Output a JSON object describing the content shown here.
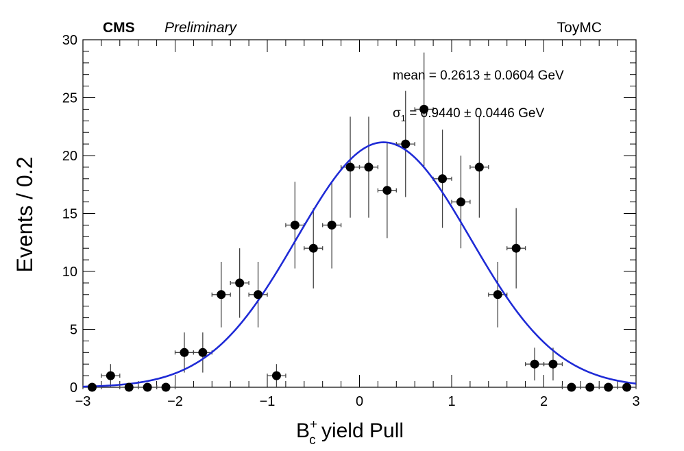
{
  "chart_data": {
    "type": "scatter",
    "header_left": "CMS",
    "header_italic": "Preliminary",
    "header_right": "ToyMC",
    "xlabel": {
      "main": "B",
      "sub": "c",
      "sup": "+",
      "rest": " yield Pull"
    },
    "ylabel": "Events / 0.2",
    "xlim": [
      -3,
      3
    ],
    "ylim": [
      0,
      30
    ],
    "x_ticks": [
      -3,
      -2,
      -1,
      0,
      1,
      2,
      3
    ],
    "y_ticks": [
      0,
      5,
      10,
      15,
      20,
      25,
      30
    ],
    "x_tick_labels": [
      "−3",
      "−2",
      "−1",
      "0",
      "1",
      "2",
      "3"
    ],
    "y_tick_labels": [
      "0",
      "5",
      "10",
      "15",
      "20",
      "25",
      "30"
    ],
    "bin_width": 0.2,
    "annotation_mean": "mean = 0.2613 ± 0.0604 GeV",
    "annotation_sigma": {
      "main": "σ",
      "sub": "1",
      "rest": " = 0.9440 ± 0.0446 GeV"
    },
    "points": [
      {
        "x": -2.9,
        "y": 0
      },
      {
        "x": -2.7,
        "y": 1
      },
      {
        "x": -2.5,
        "y": 0
      },
      {
        "x": -2.3,
        "y": 0
      },
      {
        "x": -2.1,
        "y": 0
      },
      {
        "x": -1.9,
        "y": 3
      },
      {
        "x": -1.7,
        "y": 3
      },
      {
        "x": -1.5,
        "y": 8
      },
      {
        "x": -1.3,
        "y": 9
      },
      {
        "x": -1.1,
        "y": 8
      },
      {
        "x": -0.9,
        "y": 1
      },
      {
        "x": -0.7,
        "y": 14
      },
      {
        "x": -0.5,
        "y": 12
      },
      {
        "x": -0.3,
        "y": 14
      },
      {
        "x": -0.1,
        "y": 19
      },
      {
        "x": 0.1,
        "y": 19
      },
      {
        "x": 0.3,
        "y": 17
      },
      {
        "x": 0.5,
        "y": 21
      },
      {
        "x": 0.7,
        "y": 24
      },
      {
        "x": 0.9,
        "y": 18
      },
      {
        "x": 1.1,
        "y": 16
      },
      {
        "x": 1.3,
        "y": 19
      },
      {
        "x": 1.5,
        "y": 8
      },
      {
        "x": 1.7,
        "y": 12
      },
      {
        "x": 1.9,
        "y": 2
      },
      {
        "x": 2.1,
        "y": 2
      },
      {
        "x": 2.3,
        "y": 0
      },
      {
        "x": 2.5,
        "y": 0
      },
      {
        "x": 2.7,
        "y": 0
      },
      {
        "x": 2.9,
        "y": 0
      }
    ],
    "fit": {
      "mean": 0.2613,
      "sigma": 0.944,
      "peak": 21.15,
      "color": "#1f2bd6"
    },
    "marker_color": "#000000",
    "grid": false
  }
}
